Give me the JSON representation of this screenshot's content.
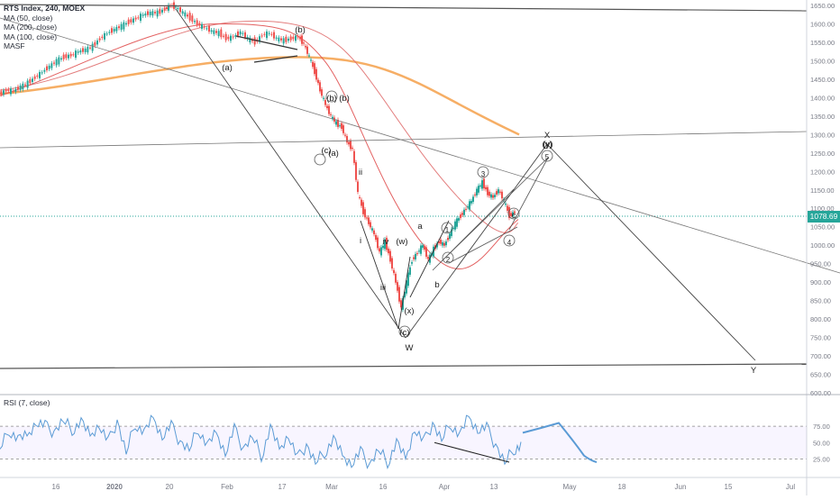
{
  "legend": {
    "title": "RTS Index, 240, MOEX",
    "ma50": "MA (50, close)",
    "ma200": "MA (200, close)",
    "ma100": "MA (100, close)",
    "masf": "MASF"
  },
  "rsi_legend": "RSI (7, close)",
  "last_price": "1078.69",
  "colors": {
    "up": "#26a69a",
    "down": "#ef5350",
    "ma_red": "#e57373",
    "ma_orange": "#ffb74d",
    "rsi": "#5b9bd5",
    "axis": "#787b86",
    "line": "#333333"
  },
  "chart_data": {
    "type": "line",
    "title": "RTS Index, 240, MOEX",
    "y_ticks": [
      1650,
      1600,
      1550,
      1500,
      1450,
      1400,
      1350,
      1300,
      1250,
      1200,
      1150,
      1100,
      1050,
      1000,
      950,
      900,
      850,
      800,
      750,
      700,
      650,
      600
    ],
    "y_tick_labels": [
      "1650.00",
      "1600.00",
      "1550.00",
      "1500.00",
      "1450.00",
      "1400.00",
      "1350.00",
      "1300.00",
      "1250.00",
      "1200.00",
      "1150.00",
      "1100.00",
      "1050.00",
      "1000.00",
      "950.00",
      "900.00",
      "850.00",
      "800.00",
      "750.00",
      "700.00",
      "650.00",
      "600.00"
    ],
    "ylim": [
      600,
      1665
    ],
    "x_labels": [
      "16",
      "2020",
      "20",
      "Feb",
      "17",
      "Mar",
      "16",
      "Apr",
      "13",
      "May",
      "18",
      "Jun",
      "15",
      "Jul"
    ],
    "price_series": [
      [
        0,
        1410
      ],
      [
        8,
        1420
      ],
      [
        16,
        1418
      ],
      [
        24,
        1430
      ],
      [
        32,
        1440
      ],
      [
        40,
        1455
      ],
      [
        48,
        1470
      ],
      [
        56,
        1485
      ],
      [
        64,
        1500
      ],
      [
        72,
        1510
      ],
      [
        80,
        1515
      ],
      [
        88,
        1525
      ],
      [
        96,
        1530
      ],
      [
        104,
        1540
      ],
      [
        112,
        1560
      ],
      [
        120,
        1575
      ],
      [
        128,
        1585
      ],
      [
        136,
        1595
      ],
      [
        144,
        1605
      ],
      [
        152,
        1615
      ],
      [
        160,
        1625
      ],
      [
        168,
        1630
      ],
      [
        176,
        1630
      ],
      [
        184,
        1640
      ],
      [
        190,
        1650
      ],
      [
        196,
        1645
      ],
      [
        204,
        1630
      ],
      [
        212,
        1615
      ],
      [
        220,
        1600
      ],
      [
        228,
        1590
      ],
      [
        236,
        1580
      ],
      [
        244,
        1575
      ],
      [
        252,
        1560
      ],
      [
        260,
        1565
      ],
      [
        268,
        1578
      ],
      [
        276,
        1560
      ],
      [
        284,
        1550
      ],
      [
        292,
        1570
      ],
      [
        300,
        1575
      ],
      [
        308,
        1560
      ],
      [
        316,
        1555
      ],
      [
        324,
        1560
      ],
      [
        332,
        1565
      ],
      [
        338,
        1545
      ],
      [
        344,
        1510
      ],
      [
        350,
        1470
      ],
      [
        356,
        1420
      ],
      [
        362,
        1380
      ],
      [
        368,
        1350
      ],
      [
        374,
        1330
      ],
      [
        380,
        1320
      ],
      [
        386,
        1280
      ],
      [
        392,
        1260
      ],
      [
        398,
        1140
      ],
      [
        404,
        1090
      ],
      [
        410,
        1060
      ],
      [
        416,
        1030
      ],
      [
        422,
        980
      ],
      [
        428,
        1010
      ],
      [
        434,
        960
      ],
      [
        440,
        900
      ],
      [
        446,
        830
      ],
      [
        452,
        900
      ],
      [
        458,
        960
      ],
      [
        464,
        980
      ],
      [
        470,
        1000
      ],
      [
        476,
        960
      ],
      [
        482,
        990
      ],
      [
        488,
        1010
      ],
      [
        494,
        1000
      ],
      [
        500,
        1030
      ],
      [
        506,
        1060
      ],
      [
        512,
        1080
      ],
      [
        518,
        1100
      ],
      [
        524,
        1120
      ],
      [
        530,
        1150
      ],
      [
        536,
        1170
      ],
      [
        542,
        1140
      ],
      [
        548,
        1130
      ],
      [
        554,
        1150
      ],
      [
        560,
        1120
      ],
      [
        566,
        1080
      ],
      [
        572,
        1090
      ]
    ],
    "rsi_series": [
      [
        0,
        40
      ],
      [
        10,
        70
      ],
      [
        20,
        55
      ],
      [
        30,
        60
      ],
      [
        40,
        82
      ],
      [
        50,
        75
      ],
      [
        60,
        65
      ],
      [
        70,
        85
      ],
      [
        80,
        70
      ],
      [
        90,
        82
      ],
      [
        100,
        60
      ],
      [
        110,
        78
      ],
      [
        120,
        50
      ],
      [
        130,
        82
      ],
      [
        140,
        35
      ],
      [
        150,
        80
      ],
      [
        160,
        65
      ],
      [
        170,
        88
      ],
      [
        180,
        60
      ],
      [
        190,
        75
      ],
      [
        200,
        50
      ],
      [
        210,
        40
      ],
      [
        220,
        72
      ],
      [
        230,
        45
      ],
      [
        240,
        65
      ],
      [
        250,
        35
      ],
      [
        260,
        70
      ],
      [
        270,
        40
      ],
      [
        280,
        60
      ],
      [
        290,
        30
      ],
      [
        300,
        72
      ],
      [
        310,
        40
      ],
      [
        320,
        62
      ],
      [
        330,
        25
      ],
      [
        340,
        45
      ],
      [
        350,
        20
      ],
      [
        360,
        35
      ],
      [
        370,
        55
      ],
      [
        380,
        30
      ],
      [
        390,
        18
      ],
      [
        400,
        35
      ],
      [
        410,
        15
      ],
      [
        420,
        40
      ],
      [
        430,
        20
      ],
      [
        440,
        50
      ],
      [
        450,
        25
      ],
      [
        460,
        72
      ],
      [
        470,
        50
      ],
      [
        480,
        78
      ],
      [
        490,
        55
      ],
      [
        500,
        80
      ],
      [
        510,
        60
      ],
      [
        520,
        90
      ],
      [
        530,
        70
      ],
      [
        540,
        72
      ],
      [
        550,
        45
      ],
      [
        560,
        20
      ],
      [
        570,
        40
      ],
      [
        578,
        45
      ]
    ],
    "rsi_ticks": [
      75,
      50,
      25
    ],
    "rsi_tick_labels": [
      "75.00",
      "50.00",
      "25.00"
    ],
    "wave_labels": [
      "(a)",
      "(b)",
      "a",
      "b",
      "(x)",
      "W",
      "(y)",
      "X",
      "Y",
      "i",
      "ii",
      "iii",
      "iv",
      "(w)",
      "(b)",
      "(a)",
      "(c)",
      "(c)",
      "(b)",
      "1",
      "2",
      "3",
      "4",
      "5",
      "(y)",
      "c"
    ]
  }
}
